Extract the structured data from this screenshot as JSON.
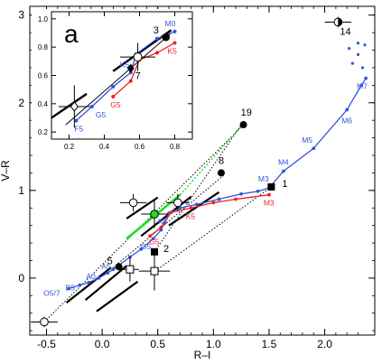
{
  "chart_data": {
    "type": "scatter",
    "xlabel": "R–I",
    "ylabel": "V–R",
    "xlim": [
      -0.65,
      2.45
    ],
    "ylim": [
      -0.65,
      3.1
    ],
    "xticks": [
      -0.5,
      0.0,
      0.5,
      1.0,
      1.5,
      2.0
    ],
    "yticks": [
      0,
      1,
      2,
      3
    ],
    "xtick_labels": [
      "-0.5",
      "0.0",
      "0.5",
      "1.0",
      "1.5",
      "2.0"
    ],
    "ytick_labels": [
      "0",
      "1",
      "2",
      "3"
    ],
    "colors": {
      "blue": "#3355dd",
      "red": "#ee2222",
      "green": "#22dd22",
      "black": "#000000"
    },
    "series": [
      {
        "color": "blue",
        "points": [
          [
            -0.3,
            -0.12
          ],
          [
            -0.2,
            -0.08
          ],
          [
            -0.12,
            -0.05
          ],
          [
            -0.03,
            0.0
          ],
          [
            0.05,
            0.06
          ],
          [
            0.1,
            0.1
          ],
          [
            0.25,
            0.24
          ],
          [
            0.35,
            0.33
          ],
          [
            0.46,
            0.45
          ],
          [
            0.53,
            0.55
          ],
          [
            0.56,
            0.63
          ],
          [
            0.6,
            0.74
          ],
          [
            0.7,
            0.8
          ],
          [
            0.85,
            0.84
          ],
          [
            1.05,
            0.9
          ],
          [
            1.25,
            0.96
          ],
          [
            1.4,
            0.99
          ],
          [
            1.5,
            1.03
          ],
          [
            1.63,
            1.22
          ],
          [
            1.9,
            1.48
          ],
          [
            2.2,
            1.92
          ],
          [
            2.33,
            2.2
          ],
          [
            2.37,
            2.28
          ]
        ],
        "labels": [
          {
            "text": "O5/7",
            "at": [
              -0.3,
              -0.12
            ]
          },
          {
            "text": "B5",
            "at": [
              -0.2,
              -0.08
            ]
          },
          {
            "text": "A0",
            "at": [
              -0.03,
              0.0
            ]
          },
          {
            "text": "A5",
            "at": [
              0.05,
              0.06
            ]
          },
          {
            "text": "G5",
            "at": [
              0.46,
              0.45
            ]
          },
          {
            "text": "K5",
            "at": [
              0.6,
              0.74
            ]
          },
          {
            "text": "M3",
            "at": [
              1.5,
              1.03
            ]
          },
          {
            "text": "M4",
            "at": [
              1.63,
              1.22
            ]
          },
          {
            "text": "M5",
            "at": [
              1.9,
              1.48
            ]
          },
          {
            "text": "M6",
            "at": [
              2.2,
              1.92
            ]
          },
          {
            "text": "M7",
            "at": [
              2.37,
              2.28
            ]
          }
        ],
        "giants_dots": [
          [
            2.22,
            2.62
          ],
          [
            2.3,
            2.68
          ],
          [
            2.36,
            2.66
          ],
          [
            2.3,
            2.55
          ],
          [
            2.25,
            2.45
          ],
          [
            2.34,
            2.4
          ]
        ]
      },
      {
        "color": "red",
        "points": [
          [
            0.43,
            0.48
          ],
          [
            0.53,
            0.58
          ],
          [
            0.62,
            0.75
          ],
          [
            0.8,
            0.8
          ],
          [
            1.0,
            0.86
          ],
          [
            1.2,
            0.9
          ],
          [
            1.5,
            0.95
          ]
        ],
        "labels": [
          {
            "text": "G5",
            "at": [
              0.43,
              0.48
            ]
          },
          {
            "text": "K5",
            "at": [
              0.8,
              0.8
            ]
          },
          {
            "text": "M3",
            "at": [
              1.5,
              0.95
            ]
          }
        ]
      }
    ],
    "reddening_vectors": [
      {
        "from": [
          -0.52,
          -0.5
        ],
        "to": [
          1.28,
          1.76
        ]
      },
      {
        "from": [
          0.1,
          0.12
        ],
        "to": [
          1.09,
          1.17
        ]
      },
      {
        "from": [
          0.5,
          0.1
        ],
        "to": [
          1.52,
          1.04
        ]
      },
      {
        "from": [
          0.47,
          0.3
        ],
        "to": [
          1.25,
          1.75
        ]
      }
    ],
    "thick_segments": [
      {
        "from": [
          -0.32,
          -0.28
        ],
        "to": [
          0.08,
          0.12
        ]
      },
      {
        "from": [
          -0.05,
          -0.38
        ],
        "to": [
          0.32,
          -0.04
        ]
      },
      {
        "from": [
          0.6,
          0.6
        ],
        "to": [
          1.05,
          0.98
        ]
      },
      {
        "from": [
          0.22,
          0.68
        ],
        "to": [
          0.5,
          0.92
        ]
      },
      {
        "from": [
          -0.15,
          -0.25
        ],
        "to": [
          0.22,
          0.14
        ]
      },
      {
        "from": [
          0.35,
          0.48
        ],
        "to": [
          0.8,
          0.93
        ]
      }
    ],
    "green_segment": {
      "from": [
        0.22,
        0.45
      ],
      "to": [
        0.7,
        0.95
      ]
    },
    "objects": [
      {
        "id": "1",
        "marker": "filled-square",
        "x": 1.52,
        "y": 1.04,
        "xerr": 0,
        "yerr": 0
      },
      {
        "id": "2",
        "marker": "filled-square",
        "x": 0.47,
        "y": 0.3,
        "xerr": 0,
        "yerr": 0
      },
      {
        "id": "5",
        "marker": "filled-circle",
        "x": 0.15,
        "y": 0.13,
        "xerr": 0,
        "yerr": 0
      },
      {
        "id": "8",
        "marker": "filled-circle",
        "x": 1.07,
        "y": 1.2,
        "xerr": 0,
        "yerr": 0
      },
      {
        "id": "14",
        "marker": "half-circle",
        "x": 2.12,
        "y": 2.92,
        "xerr": 0.12,
        "yerr": 0.06
      },
      {
        "id": "19",
        "marker": "filled-circle",
        "x": 1.27,
        "y": 1.75,
        "xerr": 0,
        "yerr": 0
      },
      {
        "id": "",
        "marker": "open-circle",
        "x": -0.52,
        "y": -0.5,
        "xerr": 0.12,
        "yerr": 0.06
      },
      {
        "id": "",
        "marker": "open-circle",
        "x": 0.28,
        "y": 0.86,
        "xerr": 0.12,
        "yerr": 0.1
      },
      {
        "id": "",
        "marker": "open-circle",
        "x": 0.68,
        "y": 0.86,
        "xerr": 0.1,
        "yerr": 0.1
      },
      {
        "id": "",
        "marker": "open-square",
        "x": 0.25,
        "y": 0.1,
        "xerr": 0.08,
        "yerr": 0.14
      },
      {
        "id": "",
        "marker": "open-square",
        "x": 0.47,
        "y": 0.08,
        "xerr": 0.14,
        "yerr": 0.22
      },
      {
        "id": "",
        "marker": "green-circle",
        "x": 0.47,
        "y": 0.73,
        "xerr": 0.12,
        "yerr": 0.16
      }
    ],
    "inset": {
      "panel_label": "a",
      "xlim": [
        0.1,
        0.9
      ],
      "ylim": [
        0.15,
        1.05
      ],
      "xticks": [
        0.2,
        0.4,
        0.6,
        0.8
      ],
      "yticks": [
        0.2,
        0.4,
        0.6,
        0.8,
        1.0
      ],
      "xtick_labels": [
        "0.2",
        "0.4",
        "0.6",
        "0.8"
      ],
      "ytick_labels": [
        "0.2",
        "0.4",
        "0.6",
        "0.8",
        "1.0"
      ],
      "blue_points": [
        [
          0.24,
          0.28
        ],
        [
          0.33,
          0.38
        ],
        [
          0.45,
          0.52
        ],
        [
          0.55,
          0.62
        ],
        [
          0.58,
          0.75
        ],
        [
          0.7,
          0.86
        ],
        [
          0.8,
          0.91
        ]
      ],
      "red_points": [
        [
          0.45,
          0.45
        ],
        [
          0.55,
          0.56
        ],
        [
          0.6,
          0.71
        ],
        [
          0.7,
          0.76
        ],
        [
          0.8,
          0.83
        ]
      ],
      "labels": [
        {
          "text": "F5",
          "at": [
            0.24,
            0.28
          ],
          "color": "blue"
        },
        {
          "text": "G5",
          "at": [
            0.33,
            0.38
          ],
          "color": "blue"
        },
        {
          "text": "G5",
          "at": [
            0.45,
            0.45
          ],
          "color": "red"
        },
        {
          "text": "K5",
          "at": [
            0.55,
            0.62
          ],
          "color": "blue"
        },
        {
          "text": "M0",
          "at": [
            0.8,
            0.91
          ],
          "color": "blue"
        },
        {
          "text": "K5",
          "at": [
            0.8,
            0.83
          ],
          "color": "red"
        }
      ],
      "thick_lines": [
        {
          "from": [
            0.1,
            0.3
          ],
          "to": [
            0.3,
            0.47
          ]
        },
        {
          "from": [
            0.45,
            0.63
          ],
          "to": [
            0.78,
            0.92
          ]
        }
      ],
      "thin_lines": [
        {
          "from": [
            0.18,
            0.25
          ],
          "to": [
            0.78,
            0.9
          ]
        }
      ],
      "objects": [
        {
          "id": "3",
          "marker": "filled-circle",
          "x": 0.75,
          "y": 0.87,
          "xerr": 0,
          "yerr": 0
        },
        {
          "id": "7",
          "marker": "filled-diamond",
          "x": 0.55,
          "y": 0.65,
          "xerr": 0,
          "yerr": 0
        },
        {
          "id": "",
          "marker": "open-circle",
          "x": 0.59,
          "y": 0.73,
          "xerr": 0.1,
          "yerr": 0.1
        },
        {
          "id": "",
          "marker": "open-diamond",
          "x": 0.23,
          "y": 0.38,
          "xerr": 0.09,
          "yerr": 0.15
        }
      ]
    }
  }
}
